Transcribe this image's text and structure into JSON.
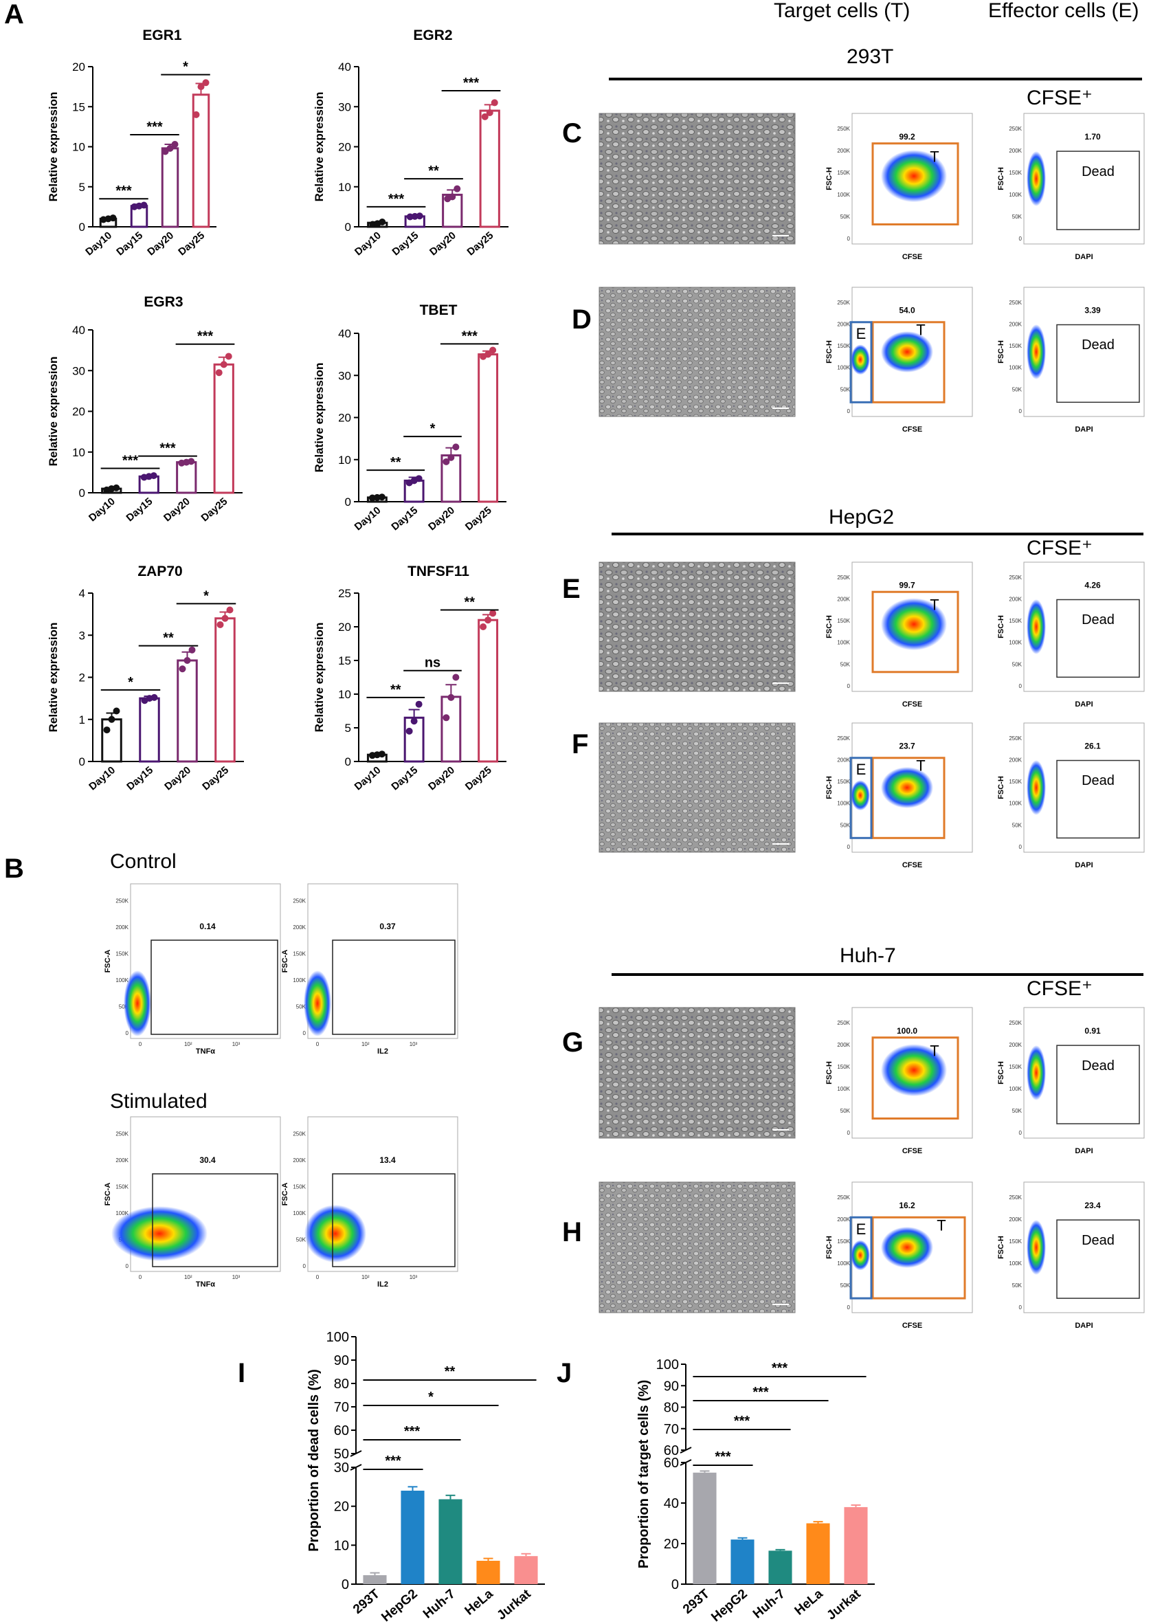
{
  "panels": {
    "A": "A",
    "B": "B",
    "C": "C",
    "D": "D",
    "E": "E",
    "F": "F",
    "G": "G",
    "H": "H",
    "I": "I",
    "J": "J"
  },
  "headers": {
    "target": "Target cells (T)",
    "effector": "Effector cells (E)",
    "cell_293t": "293T",
    "cell_hepg2": "HepG2",
    "cell_huh7": "Huh-7",
    "cfse_plus": "CFSE⁺"
  },
  "colors": {
    "day10": "#111111",
    "day15": "#4a1670",
    "day20": "#7a2a6e",
    "day25": "#c23a5a",
    "gate_orange": "#e07b2a",
    "gate_blue": "#3a6fb5",
    "bar_293t": "#a7a7ad",
    "bar_hepg2": "#1f83c8",
    "bar_huh7": "#1f8a80",
    "bar_hela": "#ff8a1a",
    "bar_jurkat": "#f98f8f"
  },
  "chart_data": [
    {
      "type": "bar",
      "title": "EGR1",
      "categories": [
        "Day10",
        "Day15",
        "Day20",
        "Day25"
      ],
      "values": [
        1.0,
        2.6,
        9.8,
        16.5
      ],
      "errors": [
        0.1,
        0.2,
        0.5,
        1.4
      ],
      "points": [
        [
          0.9,
          1.0,
          1.1
        ],
        [
          2.5,
          2.6,
          2.7
        ],
        [
          9.4,
          9.8,
          10.3
        ],
        [
          14.0,
          17.5,
          18.0
        ]
      ],
      "ylim": [
        0,
        20
      ],
      "yticks": [
        0,
        5,
        10,
        15,
        20
      ],
      "ylabel": "Relative expression",
      "sig": [
        {
          "from": 0,
          "to": 1,
          "label": "***",
          "y": 3.5
        },
        {
          "from": 1,
          "to": 2,
          "label": "***",
          "y": 11.5
        },
        {
          "from": 2,
          "to": 3,
          "label": "*",
          "y": 19.0
        }
      ]
    },
    {
      "type": "bar",
      "title": "EGR2",
      "categories": [
        "Day10",
        "Day15",
        "Day20",
        "Day25"
      ],
      "values": [
        1.0,
        2.6,
        8.0,
        29.0
      ],
      "errors": [
        0.2,
        0.2,
        1.2,
        1.5
      ],
      "points": [
        [
          0.6,
          0.8,
          1.2
        ],
        [
          2.5,
          2.6,
          2.7
        ],
        [
          7.0,
          7.5,
          9.5
        ],
        [
          27.5,
          28.5,
          31.0
        ]
      ],
      "ylim": [
        0,
        40
      ],
      "yticks": [
        0,
        10,
        20,
        30,
        40
      ],
      "ylabel": "Relative expression",
      "sig": [
        {
          "from": 0,
          "to": 1,
          "label": "***",
          "y": 5.0
        },
        {
          "from": 1,
          "to": 2,
          "label": "**",
          "y": 12.0
        },
        {
          "from": 2,
          "to": 3,
          "label": "***",
          "y": 34.0
        }
      ]
    },
    {
      "type": "bar",
      "title": "EGR3",
      "categories": [
        "Day10",
        "Day15",
        "Day20",
        "Day25"
      ],
      "values": [
        1.0,
        4.0,
        7.5,
        31.5
      ],
      "errors": [
        0.2,
        0.3,
        0.3,
        1.8
      ],
      "points": [
        [
          0.7,
          1.0,
          1.2
        ],
        [
          3.8,
          4.0,
          4.2
        ],
        [
          7.3,
          7.5,
          7.7
        ],
        [
          29.5,
          31.5,
          33.5
        ]
      ],
      "ylim": [
        0,
        40
      ],
      "yticks": [
        0,
        10,
        20,
        30,
        40
      ],
      "ylabel": "Relative expression",
      "sig": [
        {
          "from": 0,
          "to": 1,
          "label": "***",
          "y": 6.0
        },
        {
          "from": 1,
          "to": 2,
          "label": "***",
          "y": 9.0
        },
        {
          "from": 2,
          "to": 3,
          "label": "***",
          "y": 36.5
        }
      ]
    },
    {
      "type": "bar",
      "title": "TBET",
      "categories": [
        "Day10",
        "Day15",
        "Day20",
        "Day25"
      ],
      "values": [
        1.0,
        5.0,
        11.0,
        35.0
      ],
      "errors": [
        0.1,
        0.8,
        1.8,
        0.8
      ],
      "points": [
        [
          0.9,
          1.0,
          1.1
        ],
        [
          4.5,
          5.0,
          5.5
        ],
        [
          9.5,
          10.5,
          13.0
        ],
        [
          34.5,
          35.0,
          36.0
        ]
      ],
      "ylim": [
        0,
        40
      ],
      "yticks": [
        0,
        10,
        20,
        30,
        40
      ],
      "ylabel": "Relative expression",
      "sig": [
        {
          "from": 0,
          "to": 1,
          "label": "**",
          "y": 7.5
        },
        {
          "from": 1,
          "to": 2,
          "label": "*",
          "y": 15.5
        },
        {
          "from": 2,
          "to": 3,
          "label": "***",
          "y": 37.5
        }
      ]
    },
    {
      "type": "bar",
      "title": "ZAP70",
      "categories": [
        "Day10",
        "Day15",
        "Day20",
        "Day25"
      ],
      "values": [
        1.0,
        1.5,
        2.4,
        3.4
      ],
      "errors": [
        0.15,
        0.05,
        0.2,
        0.15
      ],
      "points": [
        [
          0.75,
          1.0,
          1.2
        ],
        [
          1.45,
          1.5,
          1.52
        ],
        [
          2.2,
          2.4,
          2.65
        ],
        [
          3.25,
          3.4,
          3.6
        ]
      ],
      "ylim": [
        0,
        4
      ],
      "yticks": [
        0,
        1,
        2,
        3,
        4
      ],
      "ylabel": "Relative expression",
      "sig": [
        {
          "from": 0,
          "to": 1,
          "label": "*",
          "y": 1.7
        },
        {
          "from": 1,
          "to": 2,
          "label": "**",
          "y": 2.75
        },
        {
          "from": 2,
          "to": 3,
          "label": "*",
          "y": 3.75
        }
      ]
    },
    {
      "type": "bar",
      "title": "TNFSF11",
      "categories": [
        "Day10",
        "Day15",
        "Day20",
        "Day25"
      ],
      "values": [
        1.0,
        6.5,
        9.6,
        21.0
      ],
      "errors": [
        0.1,
        1.2,
        1.8,
        0.8
      ],
      "points": [
        [
          0.9,
          1.0,
          1.1
        ],
        [
          4.5,
          6.0,
          8.5
        ],
        [
          6.5,
          9.5,
          12.5
        ],
        [
          20.0,
          21.0,
          22.0
        ]
      ],
      "ylim": [
        0,
        25
      ],
      "yticks": [
        0,
        5,
        10,
        15,
        20,
        25
      ],
      "ylabel": "Relative expression",
      "sig": [
        {
          "from": 0,
          "to": 1,
          "label": "**",
          "y": 9.5
        },
        {
          "from": 1,
          "to": 2,
          "label": "ns",
          "y": 13.5
        },
        {
          "from": 2,
          "to": 3,
          "label": "**",
          "y": 22.5
        }
      ]
    },
    {
      "type": "bar",
      "title": "",
      "categories": [
        "293T",
        "HepG2",
        "Huh-7",
        "HeLa",
        "Jurkat"
      ],
      "values": [
        2.3,
        24.0,
        21.8,
        6.0,
        7.2
      ],
      "errors": [
        0.6,
        1.0,
        1.0,
        0.6,
        0.6
      ],
      "ylim": [
        0,
        100
      ],
      "yticks_low": [
        0,
        10,
        20,
        30
      ],
      "yticks_high": [
        50,
        60,
        70,
        80,
        90,
        100
      ],
      "break": [
        30,
        50
      ],
      "ylabel": "Proportion of dead cells (%)",
      "sig": [
        {
          "from": 0,
          "to": 1,
          "label": "***"
        },
        {
          "from": 0,
          "to": 2,
          "label": "***"
        },
        {
          "from": 0,
          "to": 3,
          "label": "*"
        },
        {
          "from": 0,
          "to": 4,
          "label": "**"
        }
      ]
    },
    {
      "type": "bar",
      "title": "",
      "categories": [
        "293T",
        "HepG2",
        "Huh-7",
        "HeLa",
        "Jurkat"
      ],
      "values": [
        55.0,
        22.0,
        16.5,
        30.0,
        38.0
      ],
      "errors": [
        0.8,
        0.8,
        0.5,
        0.8,
        1.0
      ],
      "ylim": [
        0,
        100
      ],
      "yticks_low": [
        0,
        20,
        40,
        60
      ],
      "yticks_high": [
        60,
        70,
        80,
        90,
        100
      ],
      "break": [
        60,
        60
      ],
      "ylabel": "Proportion of target cells (%)",
      "sig": [
        {
          "from": 0,
          "to": 1,
          "label": "***"
        },
        {
          "from": 0,
          "to": 2,
          "label": "***"
        },
        {
          "from": 0,
          "to": 3,
          "label": "***"
        },
        {
          "from": 0,
          "to": 4,
          "label": "***"
        }
      ]
    }
  ],
  "flow_B": {
    "control": "Control",
    "stimulated": "Stimulated",
    "ylabel": "FSC-A",
    "yticks": [
      "0",
      "50K",
      "100K",
      "150K",
      "200K",
      "250K"
    ],
    "xticks": [
      "0",
      "10²",
      "10³"
    ],
    "plots": [
      {
        "xlabel": "TNFα",
        "value": "0.14"
      },
      {
        "xlabel": "IL2",
        "value": "0.37"
      },
      {
        "xlabel": "TNFα",
        "value": "30.4"
      },
      {
        "xlabel": "IL2",
        "value": "13.4"
      }
    ]
  },
  "flow_right": {
    "ylabel": "FSC-H",
    "yticks": [
      "0",
      "50K",
      "100K",
      "150K",
      "200K",
      "250K"
    ],
    "cfse": "CFSE",
    "dapi": "DAPI",
    "dead": "Dead",
    "E": "E",
    "T": "T",
    "rows": [
      {
        "cfse_val": "99.2",
        "dapi_val": "1.70"
      },
      {
        "cfse_val": "54.0",
        "dapi_val": "3.39"
      },
      {
        "cfse_val": "99.7",
        "dapi_val": "4.26"
      },
      {
        "cfse_val": "23.7",
        "dapi_val": "26.1"
      },
      {
        "cfse_val": "100.0",
        "dapi_val": "0.91"
      },
      {
        "cfse_val": "16.2",
        "dapi_val": "23.4"
      }
    ]
  }
}
